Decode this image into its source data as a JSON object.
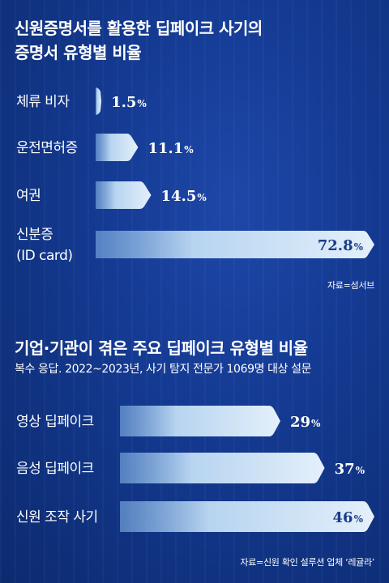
{
  "chart_data": [
    {
      "type": "bar",
      "title": "신원증명서를 활용한 딥페이크 사기의 증명서 유형별 비율",
      "title_lines": [
        "신원증명서를 활용한 딥페이크 사기의",
        "증명서 유형별 비율"
      ],
      "categories": [
        [
          "체류 비자"
        ],
        [
          "운전면허증"
        ],
        [
          "여권"
        ],
        [
          "신분증",
          "(ID card)"
        ]
      ],
      "values": [
        1.5,
        11.1,
        14.5,
        72.8
      ],
      "value_labels": [
        "1.5",
        "11.1",
        "14.5",
        "72.8"
      ],
      "unit": "%",
      "xlim": [
        0,
        72.8
      ],
      "source": "자료=섬서브"
    },
    {
      "type": "bar",
      "title": "기업·기관이 겪은 주요 딥페이크 유형별 비율",
      "subtitle": "복수 응답. 2022~2023년, 사기 탐지 전문가 1069명 대상 설문",
      "categories": [
        [
          "영상 딥페이크"
        ],
        [
          "음성 딥페이크"
        ],
        [
          "신원 조작 사기"
        ]
      ],
      "values": [
        29,
        37,
        46
      ],
      "value_labels": [
        "29",
        "37",
        "46"
      ],
      "unit": "%",
      "source": "자료=신원 확인 설루션 업체 ‘레귤라’"
    }
  ],
  "colors": {
    "background": "#0f2f78",
    "bar_fill": "#b7d4f0",
    "bar_edge": "#e4f0fb",
    "value_on_dark": "#ffffff",
    "value_on_bar": "#1a3d86"
  }
}
